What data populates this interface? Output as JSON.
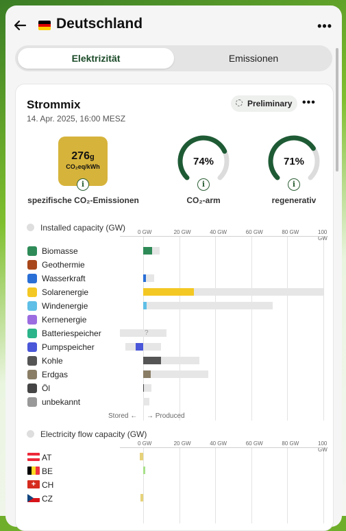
{
  "header": {
    "title": "Deutschland",
    "menu_label": "•••",
    "back_icon": "arrow-left-icon"
  },
  "tabs": [
    {
      "label": "Elektrizität",
      "active": true
    },
    {
      "label": "Emissionen",
      "active": false
    }
  ],
  "card": {
    "title": "Strommix",
    "date": "14. Apr. 2025, 16:00 MESZ",
    "preliminary_label": "Preliminary",
    "menu_label": "•••",
    "co2": {
      "value": "276",
      "value_unit": "g",
      "unit": "CO₂eq/kWh",
      "label": "spezifische CO₂-Emissionen",
      "color": "#d6b33b"
    },
    "gauges": [
      {
        "value_text": "74%",
        "fraction": 0.74,
        "label": "CO₂-arm"
      },
      {
        "value_text": "71%",
        "fraction": 0.71,
        "label": "regenerativ"
      }
    ],
    "gauge_color": "#1e5b35",
    "installed": {
      "title": "Installed capacity (GW)",
      "axis_ticks": [
        "0 GW",
        "20 GW",
        "40 GW",
        "60 GW",
        "80 GW",
        "100 GW"
      ],
      "stored_label": "Stored ←",
      "produced_label": "→ Produced",
      "unknown_mark": "?",
      "rows": [
        {
          "label": "Biomasse",
          "icon": "plant-icon",
          "color": "#2e8b57"
        },
        {
          "label": "Geothermie",
          "icon": "heat-icon",
          "color": "#a8471b"
        },
        {
          "label": "Wasserkraft",
          "icon": "waves-icon",
          "color": "#2a6fd6"
        },
        {
          "label": "Solarenergie",
          "icon": "sun-icon",
          "color": "#f4c824"
        },
        {
          "label": "Windenergie",
          "icon": "wind-icon",
          "color": "#5fbfe6"
        },
        {
          "label": "Kernenergie",
          "icon": "atom-icon",
          "color": "#9b6de0"
        },
        {
          "label": "Batteriespeicher",
          "icon": "battery-icon",
          "color": "#2bb48a"
        },
        {
          "label": "Pumpspeicher",
          "icon": "pump-icon",
          "color": "#4a57d8"
        },
        {
          "label": "Kohle",
          "icon": "coal-icon",
          "color": "#555555"
        },
        {
          "label": "Erdgas",
          "icon": "gas-flame-icon",
          "color": "#8a7d66"
        },
        {
          "label": "Öl",
          "icon": "oil-drop-icon",
          "color": "#444444"
        },
        {
          "label": "unbekannt",
          "icon": "question-icon",
          "color": "#999999"
        }
      ]
    },
    "flow": {
      "title": "Electricity flow capacity (GW)",
      "axis_ticks": [
        "0 GW",
        "20 GW",
        "40 GW",
        "60 GW",
        "80 GW",
        "100 GW"
      ],
      "rows": [
        {
          "label": "AT",
          "flag": "flag-austria-icon"
        },
        {
          "label": "BE",
          "flag": "flag-belgium-icon"
        },
        {
          "label": "CH",
          "flag": "flag-switzerland-icon"
        },
        {
          "label": "CZ",
          "flag": "flag-czechia-icon"
        }
      ]
    }
  },
  "chart_data": [
    {
      "type": "bar",
      "title": "Installed capacity (GW)",
      "categories": [
        "Biomasse",
        "Geothermie",
        "Wasserkraft",
        "Solarenergie",
        "Windenergie",
        "Kernenergie",
        "Batteriespeicher",
        "Pumpspeicher",
        "Kohle",
        "Erdgas",
        "Öl",
        "unbekannt"
      ],
      "series": [
        {
          "name": "Produced",
          "values": [
            5,
            0,
            1.5,
            28,
            2,
            0,
            0,
            4,
            10,
            4,
            0.5,
            0
          ]
        },
        {
          "name": "Installed",
          "values": [
            9,
            0,
            6,
            100,
            72,
            0,
            13,
            10,
            31,
            36,
            4.5,
            3.5
          ]
        },
        {
          "name": "Stored",
          "values": [
            0,
            0,
            0,
            0,
            0,
            0,
            -13,
            -10,
            0,
            0,
            0,
            0
          ]
        }
      ],
      "xlim": [
        -13,
        100
      ],
      "grid": true
    },
    {
      "type": "bar",
      "title": "Electricity flow capacity (GW)",
      "categories": [
        "AT",
        "BE",
        "CH",
        "CZ"
      ],
      "series": [
        {
          "name": "Flow",
          "values": [
            -2,
            1,
            0,
            -1.5
          ]
        }
      ],
      "xlim": [
        -13,
        100
      ],
      "grid": true
    }
  ]
}
